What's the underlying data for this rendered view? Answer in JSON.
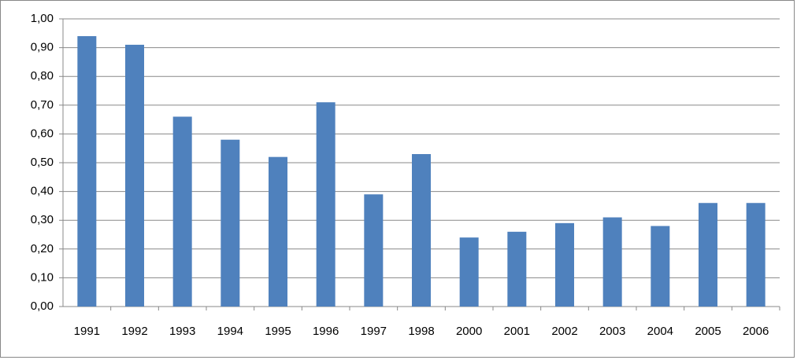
{
  "chart_data": {
    "type": "bar",
    "categories": [
      "1991",
      "1992",
      "1993",
      "1994",
      "1995",
      "1996",
      "1997",
      "1998",
      "2000",
      "2001",
      "2002",
      "2003",
      "2004",
      "2005",
      "2006"
    ],
    "values": [
      0.94,
      0.91,
      0.66,
      0.58,
      0.52,
      0.71,
      0.39,
      0.53,
      0.24,
      0.26,
      0.29,
      0.31,
      0.28,
      0.36,
      0.36
    ],
    "color": "#4f81bd",
    "ylim": [
      0,
      1
    ],
    "yticks": [
      {
        "value": 0,
        "label": "0,00"
      },
      {
        "value": 0.1,
        "label": "0,10"
      },
      {
        "value": 0.2,
        "label": "0,20"
      },
      {
        "value": 0.3,
        "label": "0,30"
      },
      {
        "value": 0.4,
        "label": "0,40"
      },
      {
        "value": 0.5,
        "label": "0,50"
      },
      {
        "value": 0.6,
        "label": "0,60"
      },
      {
        "value": 0.7,
        "label": "0,70"
      },
      {
        "value": 0.8,
        "label": "0,80"
      },
      {
        "value": 0.9,
        "label": "0,90"
      },
      {
        "value": 1,
        "label": "1,00"
      }
    ],
    "grid": true
  }
}
